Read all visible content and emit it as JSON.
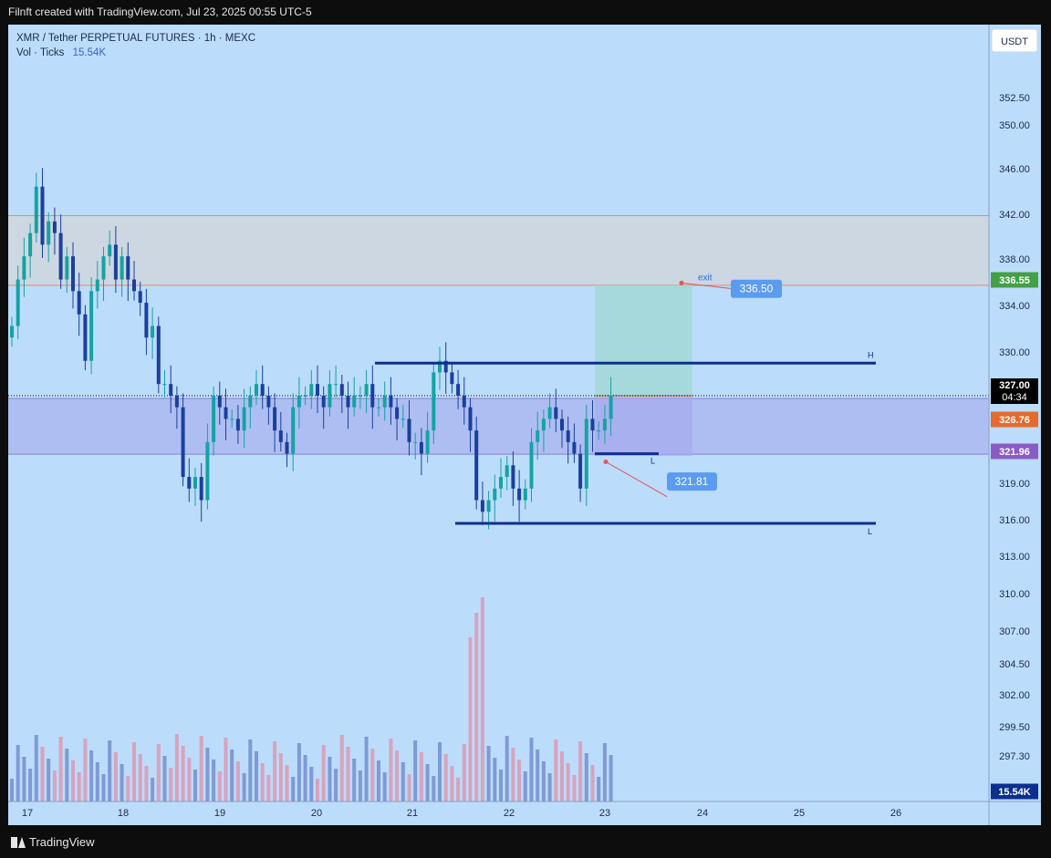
{
  "header": {
    "attribution": "Filnft created with TradingView.com, Jul 23, 2025 00:55 UTC-5"
  },
  "legend": {
    "symbol_line": "XMR / Tether PERPETUAL FUTURES · 1h · MEXC",
    "vol_label": "Vol · Ticks",
    "vol_value": "15.54K"
  },
  "currency_button": "USDT",
  "footer": {
    "brand": "TradingView"
  },
  "colors": {
    "background": "#bcdcfb",
    "up": "#14a3a3",
    "down": "#1a3f9e",
    "line": "#0c2f8f",
    "vol_up": "#7f9ad4",
    "vol_down": "#d8a3bd"
  },
  "chart_data": {
    "type": "candlestick",
    "ylim": [
      296,
      353
    ],
    "y_ticks": [
      "352.50",
      "350.00",
      "346.00",
      "342.00",
      "338.00",
      "334.00",
      "330.00",
      "319.00",
      "316.00",
      "313.00",
      "310.00",
      "307.00",
      "304.50",
      "302.00",
      "299.50",
      "297.30"
    ],
    "x_ticks": [
      "17",
      "18",
      "19",
      "20",
      "21",
      "22",
      "23",
      "24",
      "25",
      "26"
    ],
    "price_tags": [
      {
        "value": "336.55",
        "color": "#43a047"
      },
      {
        "value": "327.00",
        "color": "#000000",
        "sub": "04:34"
      },
      {
        "value": "326.76",
        "color": "#e8692a"
      },
      {
        "value": "321.96",
        "color": "#8a5bc4"
      },
      {
        "value": "15.54K",
        "color": "#0c2f8f"
      }
    ],
    "levels": [
      {
        "label": "H",
        "price": 329.8
      },
      {
        "label": "L",
        "price": 316.0
      },
      {
        "label": "L",
        "price": 322.0
      }
    ],
    "zones": [
      {
        "from": 336.5,
        "to": 342.5
      },
      {
        "from": 321.96,
        "to": 326.76
      }
    ],
    "position": {
      "entry": 327.0,
      "target": 336.5,
      "stop": 321.81,
      "target_label": "336.50",
      "stop_label": "321.81",
      "exit_label": "exit"
    },
    "price_path": [
      333,
      337,
      339,
      341,
      345,
      340,
      342,
      341,
      337,
      339,
      336,
      334,
      330,
      336,
      337,
      339,
      340,
      337,
      339,
      337,
      336,
      335,
      332,
      333,
      328,
      328,
      327,
      326,
      320,
      319,
      320,
      318,
      323,
      327,
      326,
      325,
      325,
      324,
      326,
      327,
      328,
      327,
      326,
      324,
      323,
      322,
      326,
      327,
      327,
      328,
      327,
      326,
      328,
      328,
      327,
      326,
      327,
      327,
      328,
      326,
      326,
      327,
      326,
      325,
      325,
      323,
      323,
      322,
      324,
      329,
      330,
      329,
      328,
      327,
      326,
      324,
      318,
      317,
      318,
      319,
      320,
      321,
      319,
      318,
      319,
      323,
      324,
      325,
      326,
      325,
      324,
      323,
      322,
      319,
      325,
      324,
      324,
      325,
      327
    ],
    "volume_last": 15.54
  }
}
